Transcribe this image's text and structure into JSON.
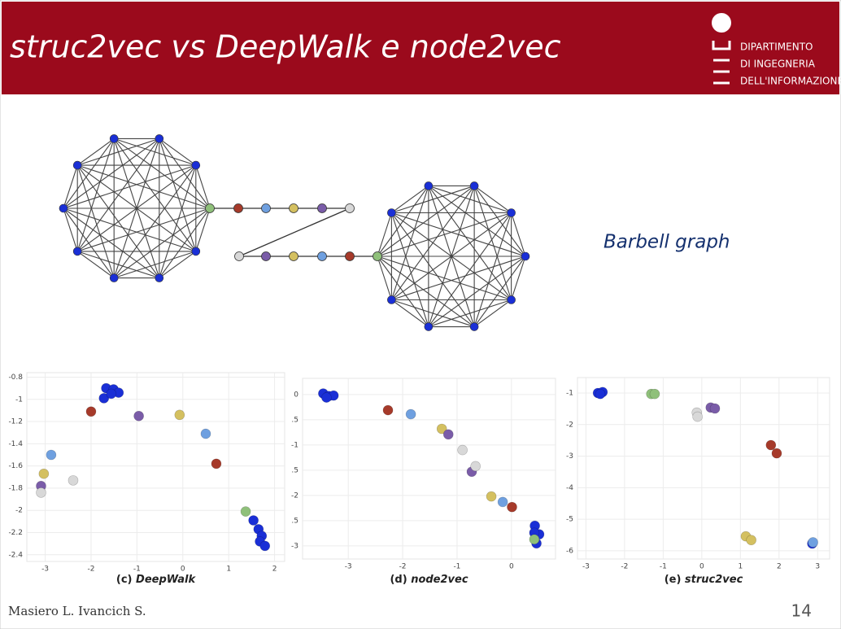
{
  "header": {
    "title": "struc2vec vs DeepWalk e node2vec",
    "logo": [
      "DIPARTIMENTO",
      "DI INGEGNERIA",
      "DELL'INFORMAZIONE"
    ]
  },
  "diagram": {
    "label": "Barbell graph"
  },
  "chart_data": [
    {
      "type": "scatter",
      "label": "(c)",
      "title": "DeepWalk",
      "grid": true,
      "xlim": [
        -3.4,
        2.22
      ],
      "ylim": [
        -2.46,
        -0.76
      ],
      "xticks": [
        -3,
        -2,
        -1,
        0,
        1,
        2
      ],
      "yticks": [
        -0.8,
        -1,
        -1.2,
        -1.4,
        -1.6,
        -1.8,
        -2,
        -2.2,
        -2.4
      ],
      "series": [
        {
          "color": "#1a2fd6",
          "x": [
            -1.67,
            -1.51,
            -1.4,
            -1.72,
            -1.56,
            1.54,
            1.65,
            1.72,
            1.68,
            1.79
          ],
          "y": [
            -0.9,
            -0.91,
            -0.94,
            -0.99,
            -0.95,
            -2.09,
            -2.17,
            -2.23,
            -2.28,
            -2.32
          ]
        },
        {
          "color": "#a63a2a",
          "x": [
            -2.0,
            0.73
          ],
          "y": [
            -1.11,
            -1.58
          ]
        },
        {
          "color": "#7a5ca8",
          "x": [
            -0.96,
            -3.09
          ],
          "y": [
            -1.15,
            -1.78
          ]
        },
        {
          "color": "#d4c060",
          "x": [
            -0.07,
            -3.03
          ],
          "y": [
            -1.14,
            -1.67
          ]
        },
        {
          "color": "#6fa0e0",
          "x": [
            0.5,
            -2.87
          ],
          "y": [
            -1.31,
            -1.5
          ]
        },
        {
          "color": "#d8d8d8",
          "x": [
            -3.09,
            -2.39
          ],
          "y": [
            -1.84,
            -1.73
          ]
        },
        {
          "color": "#8fc07a",
          "x": [
            1.37
          ],
          "y": [
            -2.01
          ]
        }
      ]
    },
    {
      "type": "scatter",
      "label": "(d)",
      "title": "node2vec",
      "grid": true,
      "xlim": [
        -3.84,
        0.81
      ],
      "ylim": [
        -3.26,
        0.32
      ],
      "xticks": [
        -3,
        -2,
        -1,
        0
      ],
      "yticks": [
        0,
        -0.5,
        -1,
        -1.5,
        -2,
        -2.5,
        -3
      ],
      "series": [
        {
          "color": "#1a2fd6",
          "x": [
            -3.46,
            -3.36,
            -3.27,
            -3.4,
            0.43,
            0.51,
            0.46,
            0.42
          ],
          "y": [
            0.02,
            -0.03,
            -0.02,
            -0.06,
            -2.6,
            -2.77,
            -2.95,
            -2.74
          ]
        },
        {
          "color": "#a63a2a",
          "x": [
            -2.27,
            0.01
          ],
          "y": [
            -0.31,
            -2.23
          ]
        },
        {
          "color": "#6fa0e0",
          "x": [
            -1.85,
            -0.16
          ],
          "y": [
            -0.39,
            -2.13
          ]
        },
        {
          "color": "#d4c060",
          "x": [
            -1.28,
            -0.37
          ],
          "y": [
            -0.68,
            -2.02
          ]
        },
        {
          "color": "#7a5ca8",
          "x": [
            -1.16,
            -0.73
          ],
          "y": [
            -0.79,
            -1.53
          ]
        },
        {
          "color": "#d8d8d8",
          "x": [
            -0.9,
            -0.66
          ],
          "y": [
            -1.1,
            -1.42
          ]
        },
        {
          "color": "#8fc07a",
          "x": [
            0.42
          ],
          "y": [
            -2.87
          ]
        }
      ]
    },
    {
      "type": "scatter",
      "label": "(e)",
      "title": "struc2vec",
      "grid": true,
      "xlim": [
        -3.22,
        3.31
      ],
      "ylim": [
        -6.26,
        -0.51
      ],
      "xticks": [
        -3,
        -2,
        -1,
        0,
        1,
        2,
        3
      ],
      "yticks": [
        -1,
        -2,
        -3,
        -4,
        -5,
        -6
      ],
      "series": [
        {
          "color": "#1a2fd6",
          "x": [
            -2.69,
            -2.57,
            -2.63,
            2.86
          ],
          "y": [
            -1.0,
            -0.97,
            -1.03,
            -5.77
          ]
        },
        {
          "color": "#8fc07a",
          "x": [
            -1.31,
            -1.22
          ],
          "y": [
            -1.03,
            -1.03
          ]
        },
        {
          "color": "#d8d8d8",
          "x": [
            -0.13,
            -0.11
          ],
          "y": [
            -1.62,
            -1.75
          ]
        },
        {
          "color": "#7a5ca8",
          "x": [
            0.23,
            0.34
          ],
          "y": [
            -1.46,
            -1.49
          ]
        },
        {
          "color": "#a63a2a",
          "x": [
            1.79,
            1.94
          ],
          "y": [
            -2.65,
            -2.91
          ]
        },
        {
          "color": "#d4c060",
          "x": [
            1.14,
            1.28
          ],
          "y": [
            -5.54,
            -5.66
          ]
        },
        {
          "color": "#6fa0e0",
          "x": [
            2.88
          ],
          "y": [
            -5.73
          ]
        }
      ]
    }
  ],
  "footer": {
    "authors": "Masiero L. Ivancich S.",
    "page": "14"
  }
}
